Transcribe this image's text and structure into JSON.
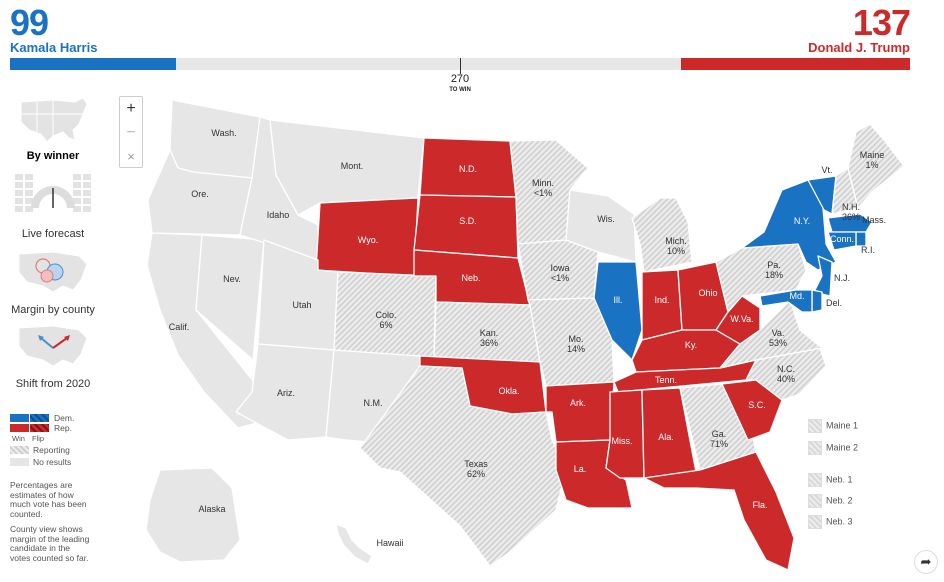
{
  "header": {
    "dem_votes": "99",
    "dem_name": "Kamala Harris",
    "rep_votes": "137",
    "rep_name": "Donald J. Trump",
    "threshold": "270",
    "threshold_label": "TO WIN",
    "total": 538
  },
  "views": [
    {
      "label": "By winner",
      "icon": "us-map-thumbnail-icon",
      "active": true
    },
    {
      "label": "Live forecast",
      "icon": "gauge-icon",
      "active": false
    },
    {
      "label": "Margin by county",
      "icon": "bubble-map-icon",
      "active": false
    },
    {
      "label": "Shift from 2020",
      "icon": "arrow-map-icon",
      "active": false
    }
  ],
  "zoom": {
    "in": "+",
    "out": "−",
    "reset": "×"
  },
  "legend": {
    "dem": "Dem.",
    "rep": "Rep.",
    "win": "Win",
    "flip": "Flip",
    "reporting": "Reporting",
    "no_results": "No results",
    "note1": "Percentages are estimates of how much vote has been counted.",
    "note2": "County view shows margin of the leading candidate in the votes counted so far."
  },
  "districts": [
    "Maine 1",
    "Maine 2",
    "Neb. 1",
    "Neb. 2",
    "Neb. 3"
  ],
  "colors": {
    "dem": "#1a73c2",
    "rep": "#cc2a2a",
    "none": "#e6e6e6",
    "reporting": "#d9d9d9"
  },
  "states": {
    "wa": {
      "name": "Wash.",
      "status": "none"
    },
    "or": {
      "name": "Ore.",
      "status": "none"
    },
    "ca": {
      "name": "Calif.",
      "status": "none"
    },
    "nv": {
      "name": "Nev.",
      "status": "none"
    },
    "id": {
      "name": "Idaho",
      "status": "none"
    },
    "mt": {
      "name": "Mont.",
      "status": "none"
    },
    "wy": {
      "name": "Wyo.",
      "status": "rep"
    },
    "ut": {
      "name": "Utah",
      "status": "none"
    },
    "az": {
      "name": "Ariz.",
      "status": "none"
    },
    "co": {
      "name": "Colo.",
      "pct": "6%",
      "status": "reporting"
    },
    "nm": {
      "name": "N.M.",
      "status": "none"
    },
    "nd": {
      "name": "N.D.",
      "status": "rep"
    },
    "sd": {
      "name": "S.D.",
      "status": "rep"
    },
    "ne": {
      "name": "Neb.",
      "status": "rep"
    },
    "ks": {
      "name": "Kan.",
      "pct": "36%",
      "status": "reporting"
    },
    "ok": {
      "name": "Okla.",
      "status": "rep"
    },
    "tx": {
      "name": "Texas",
      "pct": "62%",
      "status": "reporting"
    },
    "mn": {
      "name": "Minn.",
      "pct": "<1%",
      "status": "reporting"
    },
    "ia": {
      "name": "Iowa",
      "pct": "<1%",
      "status": "reporting"
    },
    "mo": {
      "name": "Mo.",
      "pct": "14%",
      "status": "reporting"
    },
    "ar": {
      "name": "Ark.",
      "status": "rep"
    },
    "la": {
      "name": "La.",
      "status": "rep"
    },
    "wi": {
      "name": "Wis.",
      "status": "none"
    },
    "il": {
      "name": "Ill.",
      "status": "dem"
    },
    "mi": {
      "name": "Mich.",
      "pct": "10%",
      "status": "reporting"
    },
    "in": {
      "name": "Ind.",
      "status": "rep"
    },
    "oh": {
      "name": "Ohio",
      "status": "rep"
    },
    "ky": {
      "name": "Ky.",
      "status": "rep"
    },
    "tn": {
      "name": "Tenn.",
      "status": "rep"
    },
    "ms": {
      "name": "Miss.",
      "status": "rep"
    },
    "al": {
      "name": "Ala.",
      "status": "rep"
    },
    "ga": {
      "name": "Ga.",
      "pct": "71%",
      "status": "reporting"
    },
    "fl": {
      "name": "Fla.",
      "status": "rep"
    },
    "sc": {
      "name": "S.C.",
      "status": "rep"
    },
    "nc": {
      "name": "N.C.",
      "pct": "40%",
      "status": "reporting"
    },
    "va": {
      "name": "Va.",
      "pct": "53%",
      "status": "reporting"
    },
    "wv": {
      "name": "W.Va.",
      "status": "rep"
    },
    "pa": {
      "name": "Pa.",
      "pct": "18%",
      "status": "reporting"
    },
    "ny": {
      "name": "N.Y.",
      "status": "dem"
    },
    "vt": {
      "name": "Vt.",
      "status": "dem"
    },
    "nh": {
      "name": "N.H.",
      "pct": "36%",
      "status": "reporting"
    },
    "me": {
      "name": "Maine",
      "pct": "1%",
      "status": "reporting"
    },
    "ma": {
      "name": "Mass.",
      "status": "dem"
    },
    "ri": {
      "name": "R.I.",
      "status": "dem"
    },
    "ct": {
      "name": "Conn.",
      "status": "dem"
    },
    "nj": {
      "name": "N.J.",
      "status": "dem"
    },
    "de": {
      "name": "Del.",
      "status": "dem"
    },
    "md": {
      "name": "Md.",
      "status": "dem"
    },
    "ak": {
      "name": "Alaska",
      "status": "none"
    },
    "hi": {
      "name": "Hawaii",
      "status": "none"
    }
  }
}
